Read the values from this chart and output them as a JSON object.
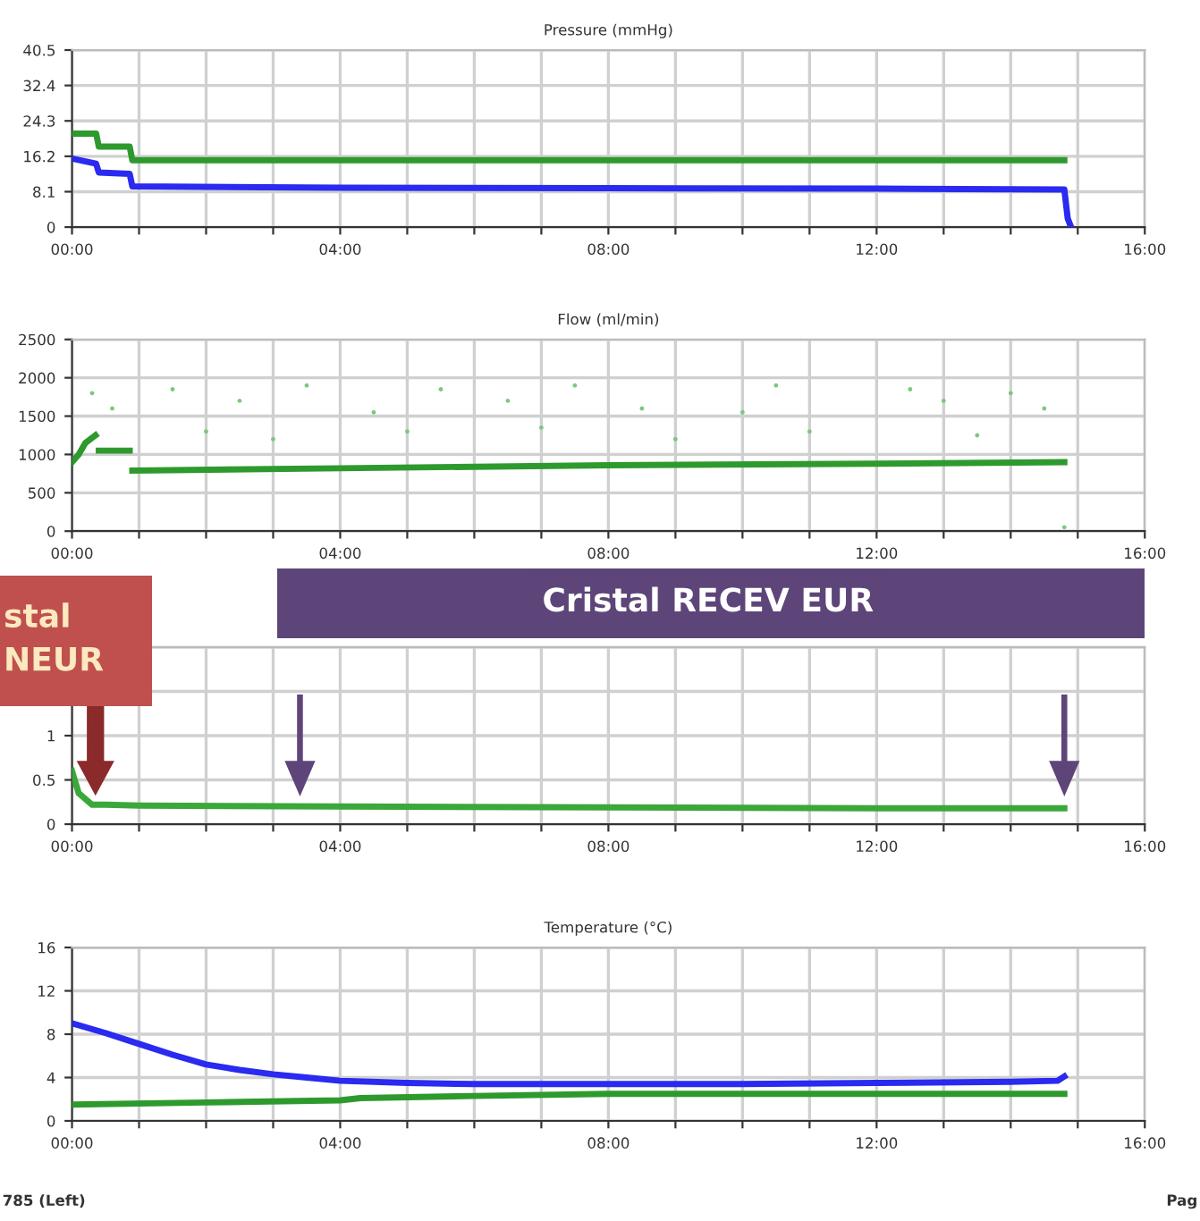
{
  "chart_data": [
    {
      "type": "line",
      "title": "Pressure (mmHg)",
      "xlim": [
        0,
        16
      ],
      "ylim": [
        0,
        40.5
      ],
      "yticks": [
        0,
        8.1,
        16.2,
        24.3,
        32.4,
        40.5
      ],
      "grid": true,
      "marker": "none",
      "line_style": "solid",
      "xticks": [
        {
          "value": 0,
          "label": "00:00"
        },
        {
          "value": 1,
          "label": null
        },
        {
          "value": 2,
          "label": null
        },
        {
          "value": 3,
          "label": null
        },
        {
          "value": 4,
          "label": "04:00"
        },
        {
          "value": 5,
          "label": null
        },
        {
          "value": 6,
          "label": null
        },
        {
          "value": 7,
          "label": null
        },
        {
          "value": 8,
          "label": "08:00"
        },
        {
          "value": 9,
          "label": null
        },
        {
          "value": 10,
          "label": null
        },
        {
          "value": 11,
          "label": null
        },
        {
          "value": 12,
          "label": "12:00"
        },
        {
          "value": 13,
          "label": null
        },
        {
          "value": 14,
          "label": null
        },
        {
          "value": 15,
          "label": null
        },
        {
          "value": 16,
          "label": "16:00"
        }
      ],
      "series": [
        {
          "color": "#2e9a2e",
          "x": [
            0,
            0.36,
            0.4,
            0.86,
            0.9,
            4,
            8,
            12,
            14.8
          ],
          "values": [
            21.4,
            21.4,
            18.4,
            18.4,
            15.3,
            15.3,
            15.3,
            15.3,
            15.3
          ]
        },
        {
          "color": "#2a2af0",
          "x": [
            0,
            0.36,
            0.4,
            0.86,
            0.9,
            4,
            8,
            12,
            14.8,
            14.85,
            14.9
          ],
          "values": [
            15.7,
            14.5,
            12.5,
            12.2,
            9.3,
            9.0,
            8.9,
            8.8,
            8.6,
            2,
            0
          ]
        }
      ]
    },
    {
      "type": "line",
      "title": "Flow (ml/min)",
      "xlim": [
        0,
        16
      ],
      "ylim": [
        0,
        2500
      ],
      "yticks": [
        0,
        500,
        1000,
        1500,
        2000,
        2500
      ],
      "grid": true,
      "marker": "none",
      "line_style": "solid",
      "xticks": [
        {
          "value": 0,
          "label": "00:00"
        },
        {
          "value": 1,
          "label": null
        },
        {
          "value": 2,
          "label": null
        },
        {
          "value": 3,
          "label": null
        },
        {
          "value": 4,
          "label": "04:00"
        },
        {
          "value": 5,
          "label": null
        },
        {
          "value": 6,
          "label": null
        },
        {
          "value": 7,
          "label": null
        },
        {
          "value": 8,
          "label": "08:00"
        },
        {
          "value": 9,
          "label": null
        },
        {
          "value": 10,
          "label": null
        },
        {
          "value": 11,
          "label": null
        },
        {
          "value": 12,
          "label": "12:00"
        },
        {
          "value": 13,
          "label": null
        },
        {
          "value": 14,
          "label": null
        },
        {
          "value": 15,
          "label": null
        },
        {
          "value": 16,
          "label": "16:00"
        }
      ],
      "series": [
        {
          "color": "#2e9a2e",
          "x": [
            0,
            0.1,
            0.2,
            0.35,
            0.36,
            0.4,
            0.86,
            0.87,
            0.9,
            4,
            8,
            12,
            14.8
          ],
          "values": [
            900,
            1000,
            1150,
            1250,
            null,
            1050,
            1050,
            null,
            790,
            820,
            860,
            880,
            900
          ]
        },
        {
          "type": "scatter",
          "color": "#7cc87c",
          "x": [
            0.3,
            0.6,
            1.5,
            2,
            2.5,
            3,
            3.5,
            4.5,
            5,
            5.5,
            6.5,
            7,
            7.5,
            8.5,
            9,
            10,
            10.5,
            11,
            12.5,
            13,
            13.5,
            14,
            14.5,
            14.8
          ],
          "values": [
            1800,
            1600,
            1850,
            1300,
            1700,
            1200,
            1900,
            1550,
            1300,
            1850,
            1700,
            1350,
            1900,
            1600,
            1200,
            1550,
            1900,
            1300,
            1850,
            1700,
            1250,
            1800,
            1600,
            50
          ]
        }
      ]
    },
    {
      "type": "line",
      "xlim": [
        0,
        16
      ],
      "ylim": [
        0,
        2
      ],
      "yticks": [
        0,
        0.5,
        1,
        {
          "value": 1.5,
          "label": null
        },
        {
          "value": 2,
          "label": null
        }
      ],
      "grid": true,
      "marker": "none",
      "line_style": "solid",
      "xticks": [
        {
          "value": 0,
          "label": "00:00"
        },
        {
          "value": 1,
          "label": null
        },
        {
          "value": 2,
          "label": null
        },
        {
          "value": 3,
          "label": null
        },
        {
          "value": 4,
          "label": "04:00"
        },
        {
          "value": 5,
          "label": null
        },
        {
          "value": 6,
          "label": null
        },
        {
          "value": 7,
          "label": null
        },
        {
          "value": 8,
          "label": "08:00"
        },
        {
          "value": 9,
          "label": null
        },
        {
          "value": 10,
          "label": null
        },
        {
          "value": 11,
          "label": null
        },
        {
          "value": 12,
          "label": "12:00"
        },
        {
          "value": 13,
          "label": null
        },
        {
          "value": 14,
          "label": null
        },
        {
          "value": 15,
          "label": null
        },
        {
          "value": 16,
          "label": "16:00"
        }
      ],
      "annotations": [
        "Cristal RECEV EUR",
        "stal\nNEUR"
      ],
      "series": [
        {
          "color": "#3aa83a",
          "x": [
            0,
            0.1,
            0.3,
            0.5,
            1,
            4,
            8,
            12,
            14.8
          ],
          "values": [
            0.6,
            0.35,
            0.22,
            0.22,
            0.21,
            0.2,
            0.19,
            0.18,
            0.18
          ]
        }
      ]
    },
    {
      "type": "line",
      "title": "Temperature (°C)",
      "xlim": [
        0,
        16
      ],
      "ylim": [
        0,
        16
      ],
      "yticks": [
        0,
        4,
        8,
        12,
        16
      ],
      "grid": true,
      "marker": "none",
      "line_style": "solid",
      "xticks": [
        {
          "value": 0,
          "label": "00:00"
        },
        {
          "value": 1,
          "label": null
        },
        {
          "value": 2,
          "label": null
        },
        {
          "value": 3,
          "label": null
        },
        {
          "value": 4,
          "label": "04:00"
        },
        {
          "value": 5,
          "label": null
        },
        {
          "value": 6,
          "label": null
        },
        {
          "value": 7,
          "label": null
        },
        {
          "value": 8,
          "label": "08:00"
        },
        {
          "value": 9,
          "label": null
        },
        {
          "value": 10,
          "label": null
        },
        {
          "value": 11,
          "label": null
        },
        {
          "value": 12,
          "label": "12:00"
        },
        {
          "value": 13,
          "label": null
        },
        {
          "value": 14,
          "label": null
        },
        {
          "value": 15,
          "label": null
        },
        {
          "value": 16,
          "label": "16:00"
        }
      ],
      "annotations": [
        "785 (Left)",
        "Pag"
      ],
      "series": [
        {
          "color": "#2a2af0",
          "x": [
            0,
            0.5,
            1,
            1.5,
            2,
            2.5,
            3,
            3.5,
            4,
            5,
            6,
            8,
            10,
            12,
            14,
            14.7,
            14.8
          ],
          "values": [
            9.0,
            8.1,
            7.1,
            6.1,
            5.2,
            4.7,
            4.3,
            4.0,
            3.7,
            3.5,
            3.4,
            3.4,
            3.4,
            3.5,
            3.6,
            3.7,
            4.1
          ]
        },
        {
          "color": "#2e9a2e",
          "x": [
            0,
            2,
            4,
            4.3,
            6,
            8,
            10,
            12,
            14.8
          ],
          "values": [
            1.5,
            1.7,
            1.9,
            2.1,
            2.3,
            2.5,
            2.5,
            2.5,
            2.5
          ]
        }
      ]
    }
  ]
}
